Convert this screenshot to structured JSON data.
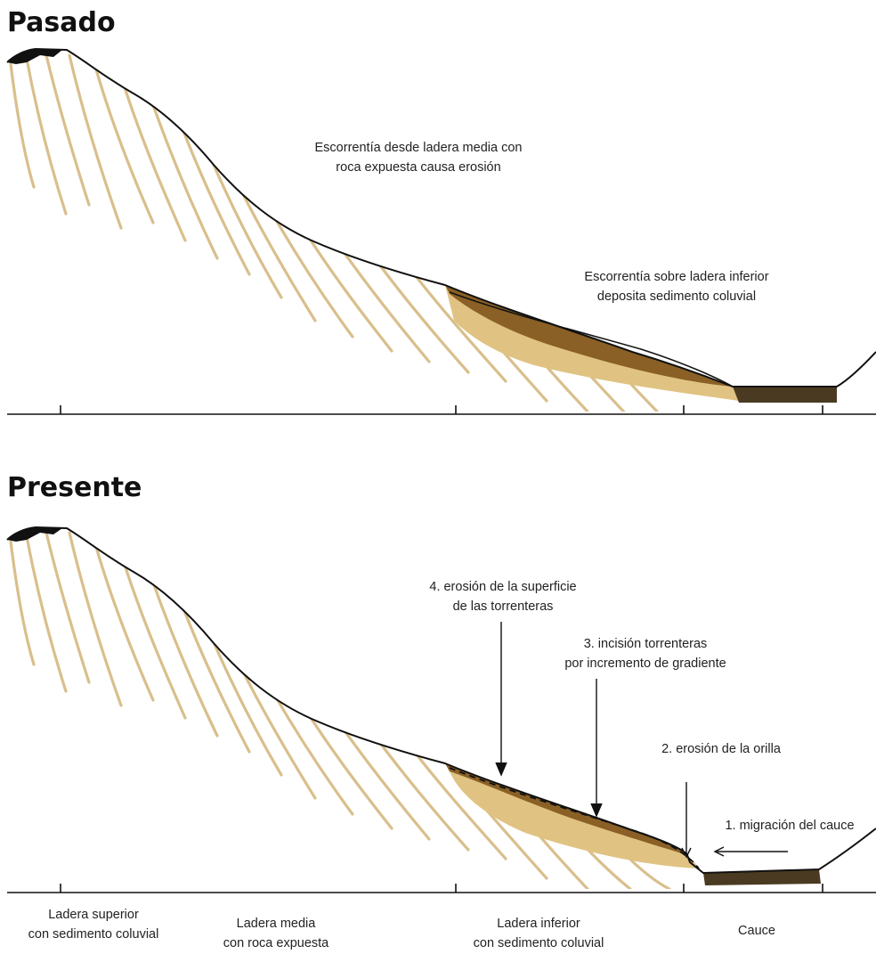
{
  "panels": {
    "past": {
      "title": "Pasado",
      "notes": {
        "runoff_erosion": [
          "Escorrentía desde ladera media con",
          "roca expuesta causa erosión"
        ],
        "runoff_deposit": [
          "Escorrentía sobre ladera inferior",
          "deposita sedimento coluvial"
        ]
      }
    },
    "present": {
      "title": "Presente",
      "notes": {
        "surface_erosion": [
          "4. erosión de la superficie",
          "de las torrenteras"
        ],
        "incision": [
          "3. incisión torrenteras",
          "por incremento de gradiente"
        ],
        "bank_erosion": "2. erosión de la orilla",
        "migration": "1. migración del cauce"
      }
    }
  },
  "zones": [
    [
      "Ladera superior",
      "con sedimento coluvial"
    ],
    [
      "Ladera media",
      "con roca expuesta"
    ],
    [
      "Ladera inferior",
      "con sedimento coluvial"
    ],
    [
      "Cauce"
    ]
  ],
  "colors": {
    "bedrock_stripe": "#d9bf8c",
    "colluvium_light": "#e0c382",
    "colluvium_dark": "#8a6026",
    "channel_sediment": "#4a3a22",
    "outline": "#111111"
  }
}
